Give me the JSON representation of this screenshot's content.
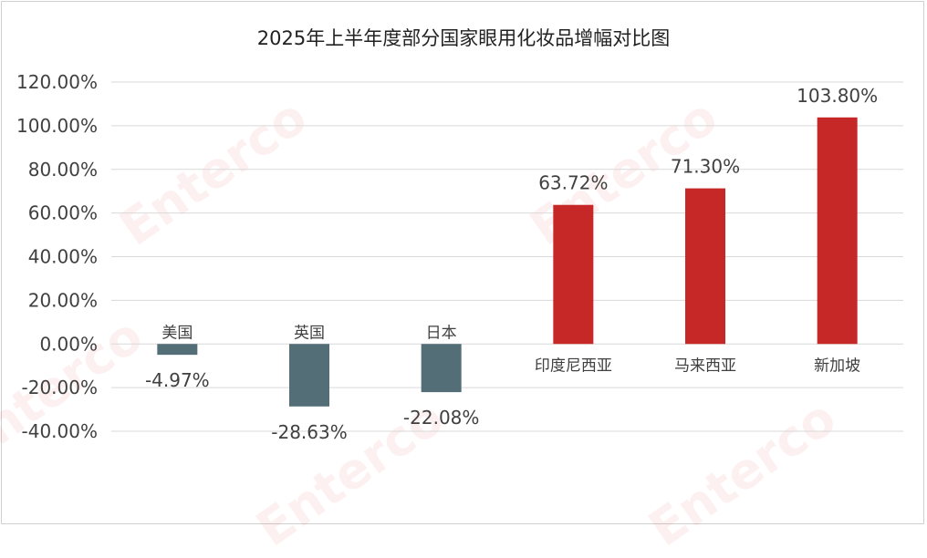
{
  "chart_data": {
    "type": "bar",
    "title": "2025年上半年度部分国家眼用化妆品增幅对比图",
    "xlabel": "",
    "ylabel": "",
    "categories": [
      "美国",
      "英国",
      "日本",
      "印度尼西亚",
      "马来西亚",
      "新加坡"
    ],
    "values": [
      -4.97,
      -28.63,
      -22.08,
      63.72,
      71.3,
      103.8
    ],
    "data_labels": [
      "-4.97%",
      "-28.63%",
      "-22.08%",
      "63.72%",
      "71.30%",
      "103.80%"
    ],
    "ylim": [
      -40,
      120
    ],
    "yticks": [
      120,
      100,
      80,
      60,
      40,
      20,
      0,
      -20,
      -40
    ],
    "ytick_labels": [
      "120.00%",
      "100.00%",
      "80.00%",
      "60.00%",
      "40.00%",
      "20.00%",
      "0.00%",
      "-20.00%",
      "-40.00%"
    ],
    "grid": true,
    "legend": "none",
    "colors": {
      "negative": "#546e78",
      "positive": "#c62828",
      "grid": "#d9d9d9",
      "text": "#404040"
    }
  },
  "watermark": {
    "text": "Enterco"
  }
}
